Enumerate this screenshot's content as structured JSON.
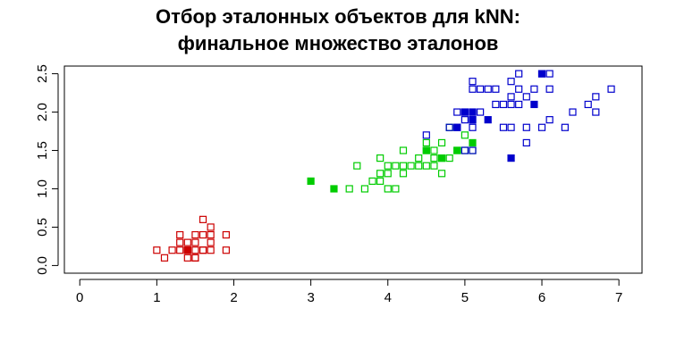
{
  "chart_data": {
    "type": "scatter",
    "title_lines": [
      "Отбор эталонных объектов для kNN:",
      "финальное множество эталонов"
    ],
    "xlabel": "",
    "ylabel": "",
    "xlim": [
      -0.2,
      7.3
    ],
    "ylim": [
      -0.1,
      2.6
    ],
    "x_ticks": [
      0,
      1,
      2,
      3,
      4,
      5,
      6,
      7
    ],
    "y_ticks": [
      0.0,
      0.5,
      1.0,
      1.5,
      2.0,
      2.5
    ],
    "x_tick_labels": [
      "0",
      "1",
      "2",
      "3",
      "4",
      "5",
      "6",
      "7"
    ],
    "y_tick_labels": [
      "0.0",
      "0.5",
      "1.0",
      "1.5",
      "2.0",
      "2.5"
    ],
    "grid": false,
    "series": [
      {
        "color": "#cc0000",
        "marker": "open-square",
        "points": [
          [
            1.0,
            0.2
          ],
          [
            1.1,
            0.1
          ],
          [
            1.2,
            0.2
          ],
          [
            1.3,
            0.2
          ],
          [
            1.3,
            0.3
          ],
          [
            1.3,
            0.4
          ],
          [
            1.4,
            0.1
          ],
          [
            1.4,
            0.3
          ],
          [
            1.5,
            0.1
          ],
          [
            1.5,
            0.2
          ],
          [
            1.5,
            0.3
          ],
          [
            1.5,
            0.4
          ],
          [
            1.6,
            0.2
          ],
          [
            1.6,
            0.4
          ],
          [
            1.6,
            0.6
          ],
          [
            1.7,
            0.2
          ],
          [
            1.7,
            0.3
          ],
          [
            1.7,
            0.4
          ],
          [
            1.7,
            0.5
          ],
          [
            1.9,
            0.2
          ],
          [
            1.9,
            0.4
          ],
          [
            1.4,
            0.2
          ],
          [
            1.5,
            0.1
          ],
          [
            1.6,
            0.2
          ]
        ]
      },
      {
        "color": "#cc0000",
        "marker": "filled-square",
        "points": [
          [
            1.4,
            0.2
          ]
        ]
      },
      {
        "color": "#00cc00",
        "marker": "open-square",
        "points": [
          [
            3.5,
            1.0
          ],
          [
            3.7,
            1.0
          ],
          [
            3.8,
            1.1
          ],
          [
            3.9,
            1.1
          ],
          [
            3.9,
            1.2
          ],
          [
            3.9,
            1.4
          ],
          [
            4.0,
            1.0
          ],
          [
            4.0,
            1.2
          ],
          [
            4.0,
            1.3
          ],
          [
            4.1,
            1.0
          ],
          [
            4.1,
            1.3
          ],
          [
            4.2,
            1.2
          ],
          [
            4.2,
            1.3
          ],
          [
            4.2,
            1.5
          ],
          [
            4.3,
            1.3
          ],
          [
            4.4,
            1.3
          ],
          [
            4.4,
            1.4
          ],
          [
            4.5,
            1.3
          ],
          [
            4.5,
            1.5
          ],
          [
            4.6,
            1.3
          ],
          [
            4.6,
            1.4
          ],
          [
            4.6,
            1.5
          ],
          [
            4.7,
            1.2
          ],
          [
            4.7,
            1.4
          ],
          [
            4.7,
            1.6
          ],
          [
            4.8,
            1.4
          ],
          [
            4.8,
            1.8
          ],
          [
            4.9,
            1.5
          ],
          [
            5.0,
            1.7
          ],
          [
            3.6,
            1.3
          ],
          [
            4.5,
            1.6
          ],
          [
            5.1,
            1.5
          ],
          [
            5.0,
            1.5
          ]
        ]
      },
      {
        "color": "#00cc00",
        "marker": "filled-square",
        "points": [
          [
            3.0,
            1.1
          ],
          [
            3.3,
            1.0
          ],
          [
            4.5,
            1.5
          ],
          [
            4.7,
            1.4
          ],
          [
            4.9,
            1.5
          ],
          [
            5.1,
            1.6
          ]
        ]
      },
      {
        "color": "#0000cc",
        "marker": "open-square",
        "points": [
          [
            4.5,
            1.7
          ],
          [
            4.8,
            1.8
          ],
          [
            4.9,
            1.8
          ],
          [
            4.9,
            2.0
          ],
          [
            5.0,
            1.5
          ],
          [
            5.0,
            1.9
          ],
          [
            5.0,
            2.0
          ],
          [
            5.1,
            1.5
          ],
          [
            5.1,
            1.8
          ],
          [
            5.1,
            1.9
          ],
          [
            5.1,
            2.0
          ],
          [
            5.1,
            2.3
          ],
          [
            5.1,
            2.4
          ],
          [
            5.2,
            2.0
          ],
          [
            5.2,
            2.3
          ],
          [
            5.3,
            2.3
          ],
          [
            5.4,
            2.1
          ],
          [
            5.4,
            2.3
          ],
          [
            5.5,
            1.8
          ],
          [
            5.5,
            2.1
          ],
          [
            5.6,
            1.8
          ],
          [
            5.6,
            2.1
          ],
          [
            5.6,
            2.2
          ],
          [
            5.6,
            2.4
          ],
          [
            5.7,
            2.1
          ],
          [
            5.7,
            2.3
          ],
          [
            5.7,
            2.5
          ],
          [
            5.8,
            1.6
          ],
          [
            5.8,
            1.8
          ],
          [
            5.8,
            2.2
          ],
          [
            5.9,
            2.3
          ],
          [
            6.0,
            1.8
          ],
          [
            6.0,
            2.5
          ],
          [
            6.1,
            1.9
          ],
          [
            6.1,
            2.3
          ],
          [
            6.1,
            2.5
          ],
          [
            6.3,
            1.8
          ],
          [
            6.4,
            2.0
          ],
          [
            6.6,
            2.1
          ],
          [
            6.7,
            2.0
          ],
          [
            6.7,
            2.2
          ],
          [
            6.9,
            2.3
          ]
        ]
      },
      {
        "color": "#0000cc",
        "marker": "filled-square",
        "points": [
          [
            4.9,
            1.8
          ],
          [
            5.0,
            2.0
          ],
          [
            5.1,
            2.0
          ],
          [
            5.1,
            1.9
          ],
          [
            5.3,
            1.9
          ],
          [
            5.6,
            1.4
          ],
          [
            5.9,
            2.1
          ],
          [
            6.0,
            2.5
          ]
        ]
      }
    ]
  }
}
